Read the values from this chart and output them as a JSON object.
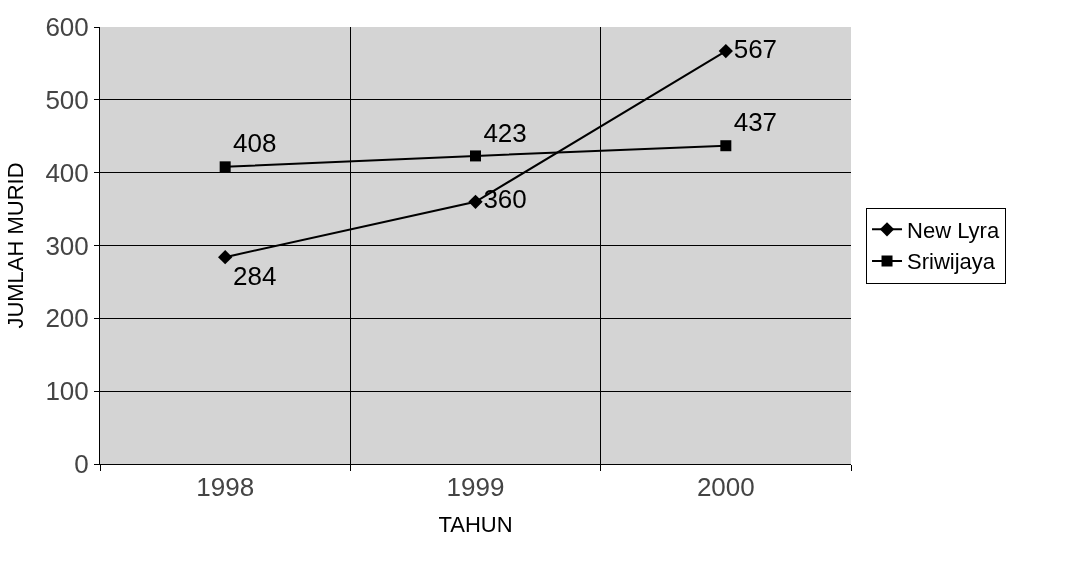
{
  "chart_data": {
    "type": "line",
    "xlabel": "TAHUN",
    "ylabel": "JUMLAH MURID",
    "categories": [
      "1998",
      "1999",
      "2000"
    ],
    "series": [
      {
        "name": "New Lyra",
        "color": "#000000",
        "marker": "diamond",
        "values": [
          284,
          360,
          567
        ]
      },
      {
        "name": "Sriwijaya",
        "color": "#000000",
        "marker": "square",
        "values": [
          408,
          423,
          437
        ]
      }
    ],
    "ylim": [
      0,
      600
    ],
    "yticks": [
      0,
      100,
      200,
      300,
      400,
      500,
      600
    ],
    "grid": true,
    "legend": "right",
    "data_labels": true,
    "line_style": "solid"
  }
}
